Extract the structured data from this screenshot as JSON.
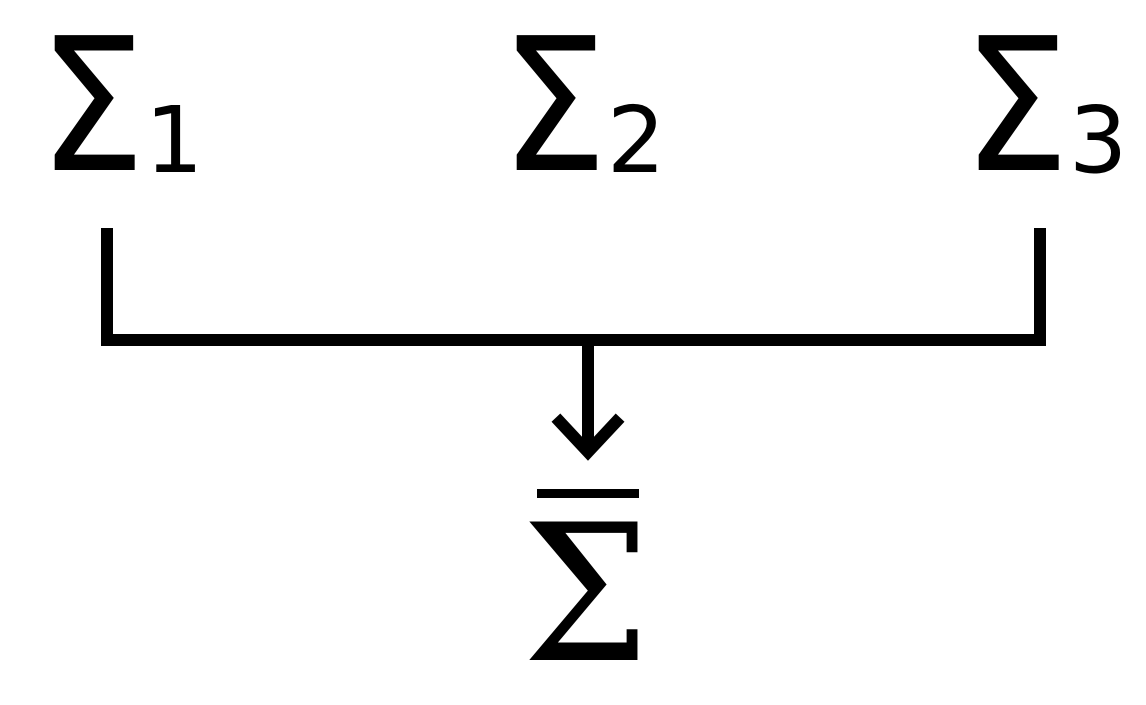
{
  "diagram": {
    "inputs": [
      {
        "symbol": "Σ",
        "subscript": "1"
      },
      {
        "symbol": "Σ",
        "subscript": "2"
      },
      {
        "symbol": "Σ",
        "subscript": "3"
      }
    ],
    "output": {
      "symbol": "Σ",
      "overline": true
    },
    "colors": {
      "background": "#ffffff",
      "stroke": "#000000"
    }
  }
}
